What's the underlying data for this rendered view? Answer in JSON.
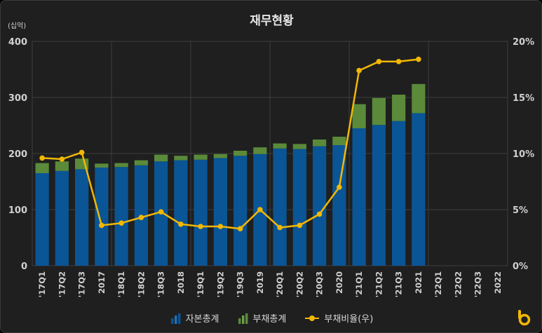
{
  "title": "재무현황",
  "unit_label": "(십억)",
  "legend": [
    {
      "label": "자본총계",
      "icon": "blue-bar-icon"
    },
    {
      "label": "부채총계",
      "icon": "green-bar-icon"
    },
    {
      "label": "부채비율(우)",
      "icon": "line-dot-icon"
    }
  ],
  "colors": {
    "equity": "#0a5596",
    "liabilities": "#5a8a3a",
    "ratio": "#f2b705",
    "grid": "#3e3e3e",
    "background": "#1f1f1f"
  },
  "chart_data": {
    "type": "bar",
    "categories": [
      "'17Q1",
      "'17Q2",
      "'17Q3",
      "2017",
      "'18Q1",
      "'18Q2",
      "'18Q3",
      "2018",
      "'19Q1",
      "'19Q2",
      "'19Q3",
      "2019",
      "'20Q1",
      "'20Q2",
      "'20Q3",
      "2020",
      "'21Q1",
      "'21Q2",
      "'21Q3",
      "2021",
      "'22Q1",
      "'22Q2",
      "'22Q3",
      "2022"
    ],
    "series": [
      {
        "name": "자본총계",
        "kind": "bar-stack",
        "axis": "left",
        "values": [
          165,
          169,
          172,
          175,
          176,
          179,
          186,
          188,
          189,
          192,
          196,
          199,
          209,
          208,
          213,
          215,
          245,
          251,
          258,
          272,
          null,
          null,
          null,
          null
        ]
      },
      {
        "name": "부채총계",
        "kind": "bar-stack",
        "axis": "left",
        "values": [
          18,
          17,
          19,
          7,
          7,
          9,
          12,
          8,
          9,
          7,
          9,
          12,
          9,
          9,
          12,
          15,
          43,
          48,
          47,
          52,
          null,
          null,
          null,
          null
        ]
      },
      {
        "name": "부채비율(우)",
        "kind": "line",
        "axis": "right",
        "values": [
          9.6,
          9.5,
          10.1,
          3.6,
          3.8,
          4.3,
          4.8,
          3.7,
          3.5,
          3.5,
          3.3,
          5.0,
          3.4,
          3.6,
          4.6,
          7.0,
          17.4,
          18.2,
          18.2,
          18.4,
          null,
          null,
          null,
          null
        ]
      }
    ],
    "y_left": {
      "min": 0,
      "max": 400,
      "ticks": [
        0,
        100,
        200,
        300,
        400
      ]
    },
    "y_right": {
      "min": 0,
      "max": 20,
      "ticks": [
        "0%",
        "5%",
        "10%",
        "15%",
        "20%"
      ]
    },
    "grid": true,
    "legend_position": "bottom"
  }
}
